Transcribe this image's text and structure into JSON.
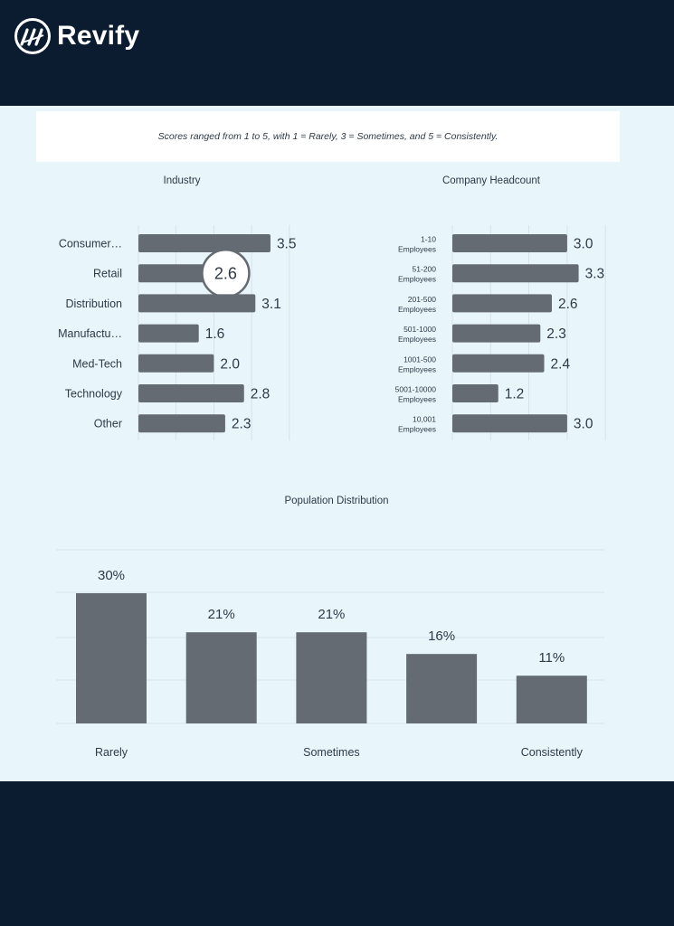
{
  "brand": {
    "name": "Revify"
  },
  "note": "Scores ranged from 1 to 5, with 1 = Rarely, 3 = Sometimes, and 5 = Consistently.",
  "colors": {
    "bar": "#646b72",
    "panel": "#e8f5fa",
    "navy": "#0b1c31",
    "text": "#2e3a47"
  },
  "chart_data": [
    {
      "type": "bar",
      "orientation": "horizontal",
      "title": "Industry",
      "categories": [
        "Consumer…",
        "Retail",
        "Distribution",
        "Manufactu…",
        "Med-Tech",
        "Technology",
        "Other"
      ],
      "values": [
        3.5,
        2.6,
        3.1,
        1.6,
        2.0,
        2.8,
        2.3
      ],
      "value_labels": [
        "3.5",
        "2.6",
        "3.1",
        "1.6",
        "2.0",
        "2.8",
        "2.3"
      ],
      "xlim": [
        0,
        5
      ],
      "highlighted": "Retail"
    },
    {
      "type": "bar",
      "orientation": "horizontal",
      "title": "Company Headcount",
      "categories": [
        "1-10 Employees",
        "51-200 Employees",
        "201-500 Employees",
        "501-1000 Employees",
        "1001-500 Employees",
        "5001-10000 Employees",
        "10,001 Employees"
      ],
      "values": [
        3.0,
        3.3,
        2.6,
        2.3,
        2.4,
        1.2,
        3.0
      ],
      "value_labels": [
        "3.0",
        "3.3",
        "2.6",
        "2.3",
        "2.4",
        "1.2",
        "3.0"
      ],
      "xlim": [
        0,
        5
      ]
    },
    {
      "type": "bar",
      "title": "Population Distribution",
      "categories": [
        "Rarely",
        "",
        "Sometimes",
        "",
        "Consistently"
      ],
      "values": [
        30,
        21,
        21,
        16,
        11
      ],
      "value_labels": [
        "30%",
        "21%",
        "21%",
        "16%",
        "11%"
      ],
      "ylim": [
        0,
        40
      ],
      "grid": true
    }
  ]
}
